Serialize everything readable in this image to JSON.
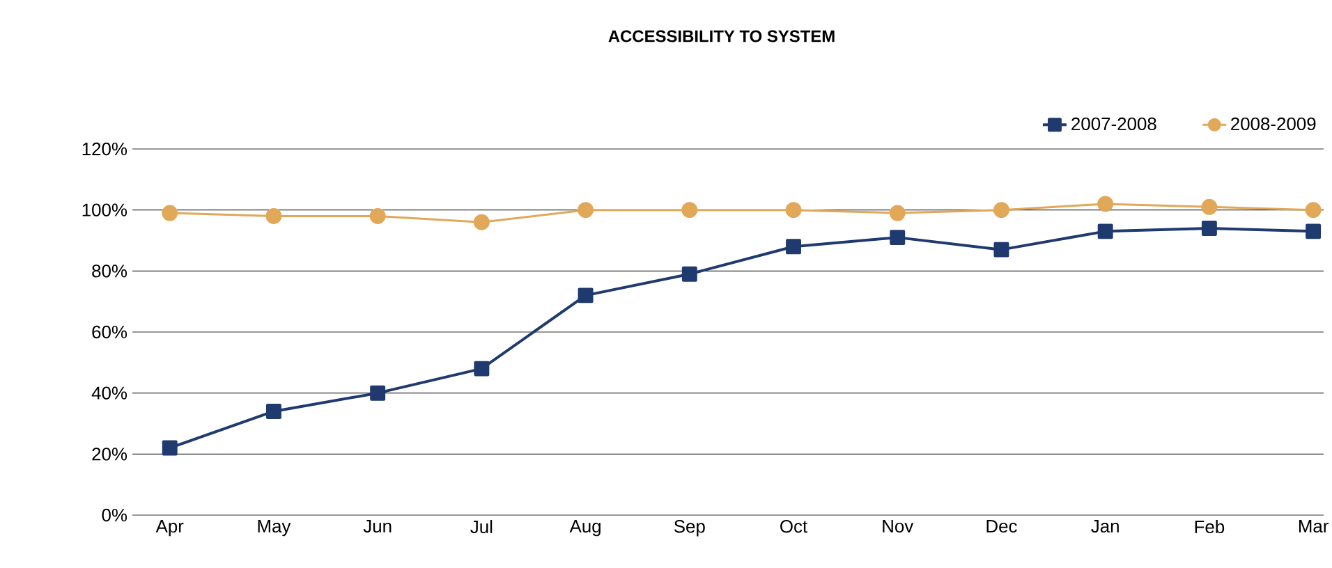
{
  "chart_data": {
    "type": "line",
    "title": "ACCESSIBILITY TO SYSTEM",
    "categories": [
      "Apr",
      "May",
      "Jun",
      "Jul",
      "Aug",
      "Sep",
      "Oct",
      "Nov",
      "Dec",
      "Jan",
      "Feb",
      "Mar"
    ],
    "series": [
      {
        "name": "2007-2008",
        "color": "#1f3a6e",
        "marker": "square",
        "values": [
          22,
          34,
          40,
          48,
          72,
          79,
          88,
          91,
          87,
          93,
          94,
          93
        ]
      },
      {
        "name": "2008-2009",
        "color": "#e0a858",
        "marker": "circle",
        "values": [
          99,
          98,
          98,
          96,
          100,
          100,
          100,
          99,
          100,
          102,
          101,
          100
        ]
      }
    ],
    "ylim": [
      0,
      120
    ],
    "yticks": [
      {
        "value": 0,
        "label": "0%"
      },
      {
        "value": 20,
        "label": "20%"
      },
      {
        "value": 40,
        "label": "40%"
      },
      {
        "value": 60,
        "label": "60%"
      },
      {
        "value": 80,
        "label": "80%"
      },
      {
        "value": 100,
        "label": "100%"
      },
      {
        "value": 120,
        "label": "120%"
      }
    ],
    "grid": "y",
    "legend": "top right",
    "line_style": "solid"
  }
}
